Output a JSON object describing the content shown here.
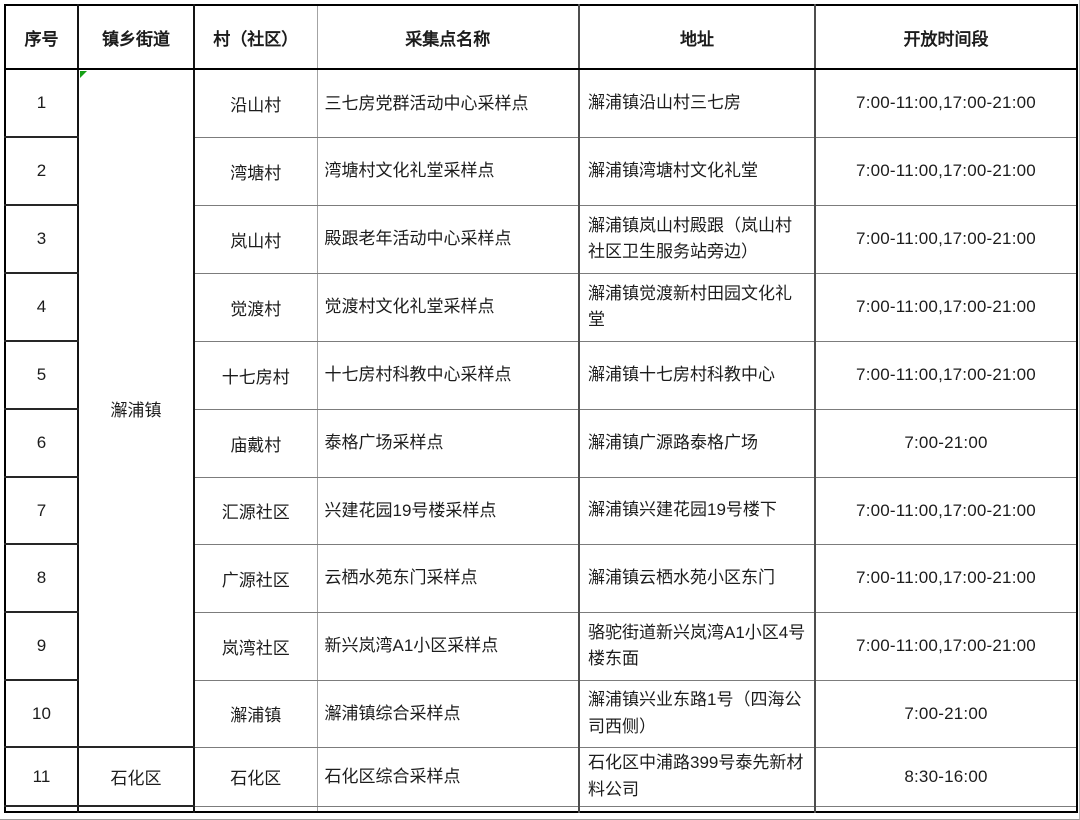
{
  "table": {
    "headers": [
      "序号",
      "镇乡街道",
      "村（社区）",
      "采集点名称",
      "地址",
      "开放时间段"
    ],
    "marker_color": "#16a016",
    "towns": [
      {
        "label": "澥浦镇",
        "rowspan": 10
      },
      {
        "label": "石化区",
        "rowspan": 1
      }
    ],
    "rows": [
      {
        "no": "1",
        "village": "沿山村",
        "site": "三七房党群活动中心采样点",
        "address": "澥浦镇沿山村三七房",
        "time": "7:00-11:00,17:00-21:00"
      },
      {
        "no": "2",
        "village": "湾塘村",
        "site": "湾塘村文化礼堂采样点",
        "address": "澥浦镇湾塘村文化礼堂",
        "time": "7:00-11:00,17:00-21:00"
      },
      {
        "no": "3",
        "village": "岚山村",
        "site": "殿跟老年活动中心采样点",
        "address": "澥浦镇岚山村殿跟（岚山村社区卫生服务站旁边）",
        "time": "7:00-11:00,17:00-21:00"
      },
      {
        "no": "4",
        "village": "觉渡村",
        "site": "觉渡村文化礼堂采样点",
        "address": "澥浦镇觉渡新村田园文化礼堂",
        "time": "7:00-11:00,17:00-21:00"
      },
      {
        "no": "5",
        "village": "十七房村",
        "site": "十七房村科教中心采样点",
        "address": "澥浦镇十七房村科教中心",
        "time": "7:00-11:00,17:00-21:00"
      },
      {
        "no": "6",
        "village": "庙戴村",
        "site": "泰格广场采样点",
        "address": "澥浦镇广源路泰格广场",
        "time": "7:00-21:00"
      },
      {
        "no": "7",
        "village": "汇源社区",
        "site": "兴建花园19号楼采样点",
        "address": "澥浦镇兴建花园19号楼下",
        "time": "7:00-11:00,17:00-21:00"
      },
      {
        "no": "8",
        "village": "广源社区",
        "site": "云栖水苑东门采样点",
        "address": "澥浦镇云栖水苑小区东门",
        "time": "7:00-11:00,17:00-21:00"
      },
      {
        "no": "9",
        "village": "岚湾社区",
        "site": "新兴岚湾A1小区采样点",
        "address": "骆驼街道新兴岚湾A1小区4号楼东面",
        "time": "7:00-11:00,17:00-21:00"
      },
      {
        "no": "10",
        "village": "澥浦镇",
        "site": "澥浦镇综合采样点",
        "address": "澥浦镇兴业东路1号（四海公司西侧）",
        "time": "7:00-21:00"
      },
      {
        "no": "11",
        "village": "石化区",
        "site": "石化区综合采样点",
        "address": "石化区中浦路399号泰先新材料公司",
        "time": "8:30-16:00"
      }
    ]
  }
}
